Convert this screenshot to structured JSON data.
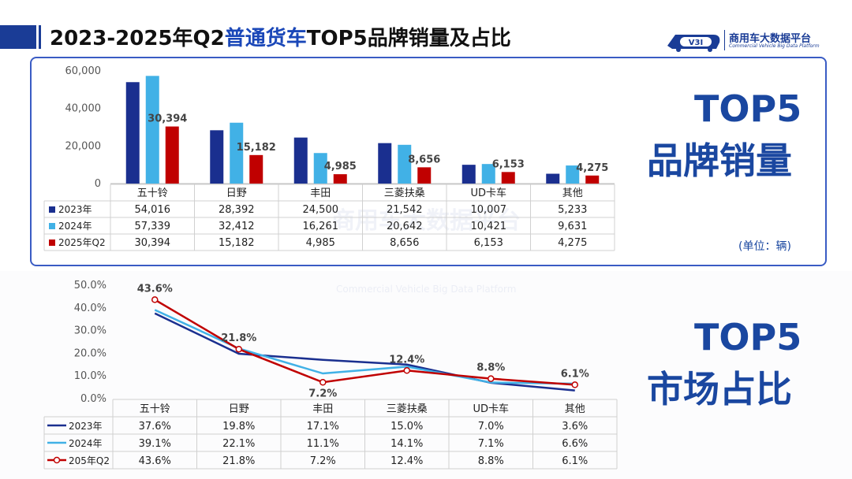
{
  "header": {
    "title_pre": "2023-2025年Q2",
    "title_highlight": "普通货车",
    "title_post": "TOP5品牌销量及占比",
    "logo_text": "商用车大数据平台",
    "logo_sub": "Commercial Vehicle Big Data Platform",
    "logo_badge": "V3I"
  },
  "labels": {
    "sales_line1": "TOP5",
    "sales_line2": "品牌销量",
    "share_line1": "TOP5",
    "share_line2": "市场占比",
    "unit": "(单位：辆)"
  },
  "colors": {
    "dark_blue": "#1a2f8f",
    "light_blue": "#41b1e6",
    "red": "#c00000",
    "accent": "#1a3c96"
  },
  "chart_data": [
    {
      "type": "bar",
      "categories": [
        "五十铃",
        "日野",
        "丰田",
        "三菱扶桑",
        "UD卡车",
        "其他"
      ],
      "series": [
        {
          "name": "2023年",
          "values": [
            54016,
            28392,
            24500,
            21542,
            10007,
            5233
          ],
          "table": [
            "54,016",
            "28,392",
            "24,500",
            "21,542",
            "10,007",
            "5,233"
          ]
        },
        {
          "name": "2024年",
          "values": [
            57339,
            32412,
            16261,
            20642,
            10421,
            9631
          ],
          "table": [
            "57,339",
            "32,412",
            "16,261",
            "20,642",
            "10,421",
            "9,631"
          ]
        },
        {
          "name": "2025年Q2",
          "values": [
            30394,
            15182,
            4985,
            8656,
            6153,
            4275
          ],
          "table": [
            "30,394",
            "15,182",
            "4,985",
            "8,656",
            "6,153",
            "4,275"
          ]
        }
      ],
      "data_labels": [
        "30,394",
        "15,182",
        "4,985",
        "8,656",
        "6,153",
        "4,275"
      ],
      "ylim": [
        0,
        60000
      ],
      "yticks": [
        "0",
        "20,000",
        "40,000",
        "60,000"
      ],
      "ytick_values": [
        0,
        20000,
        40000,
        60000
      ],
      "grid": false,
      "legend": "data-table"
    },
    {
      "type": "line",
      "categories": [
        "五十铃",
        "日野",
        "丰田",
        "三菱扶桑",
        "UD卡车",
        "其他"
      ],
      "series": [
        {
          "name": "2023年",
          "values": [
            37.6,
            19.8,
            17.1,
            15.0,
            7.0,
            3.6
          ],
          "table": [
            "37.6%",
            "19.8%",
            "17.1%",
            "15.0%",
            "7.0%",
            "3.6%"
          ]
        },
        {
          "name": "2024年",
          "values": [
            39.1,
            22.1,
            11.1,
            14.1,
            7.1,
            6.6
          ],
          "table": [
            "39.1%",
            "22.1%",
            "11.1%",
            "14.1%",
            "7.1%",
            "6.6%"
          ]
        },
        {
          "name": "205年Q2",
          "values": [
            43.6,
            21.8,
            7.2,
            12.4,
            8.8,
            6.1
          ],
          "table": [
            "43.6%",
            "21.8%",
            "7.2%",
            "12.4%",
            "8.8%",
            "6.1%"
          ]
        }
      ],
      "data_labels": [
        "43.6%",
        "21.8%",
        "7.2%",
        "12.4%",
        "8.8%",
        "6.1%"
      ],
      "ylim": [
        0,
        50
      ],
      "yticks": [
        "0.0%",
        "10.0%",
        "20.0%",
        "30.0%",
        "40.0%",
        "50.0%"
      ],
      "ytick_values": [
        0,
        10,
        20,
        30,
        40,
        50
      ],
      "grid": false,
      "legend": "data-table"
    }
  ]
}
